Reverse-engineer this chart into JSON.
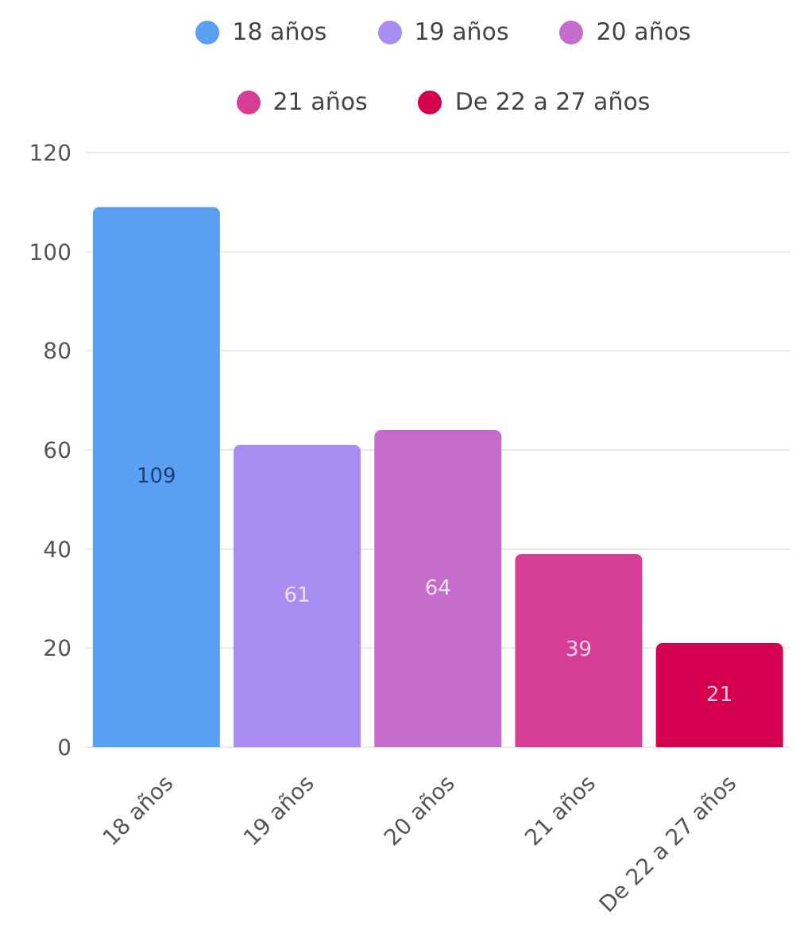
{
  "chart_data": {
    "type": "bar",
    "categories": [
      "18 años",
      "19 años",
      "20 años",
      "21 años",
      "De 22 a 27 años"
    ],
    "series": [
      {
        "name": "18 años",
        "color": "#5a9ff2",
        "values": [
          109,
          null,
          null,
          null,
          null
        ]
      },
      {
        "name": "19 años",
        "color": "#a98cef",
        "values": [
          null,
          61,
          null,
          null,
          null
        ]
      },
      {
        "name": "20 años",
        "color": "#c46cc9",
        "values": [
          null,
          null,
          64,
          null,
          null
        ]
      },
      {
        "name": "21 años",
        "color": "#d63d94",
        "values": [
          null,
          null,
          null,
          39,
          null
        ]
      },
      {
        "name": "De 22 a 27 años",
        "color": "#d4004f",
        "values": [
          null,
          null,
          null,
          null,
          21
        ]
      }
    ],
    "stacked": true,
    "ylim": [
      0,
      120
    ],
    "yticks": [
      0,
      20,
      40,
      60,
      80,
      100,
      120
    ],
    "grid": "y",
    "legend": "top",
    "data_labels": true
  }
}
